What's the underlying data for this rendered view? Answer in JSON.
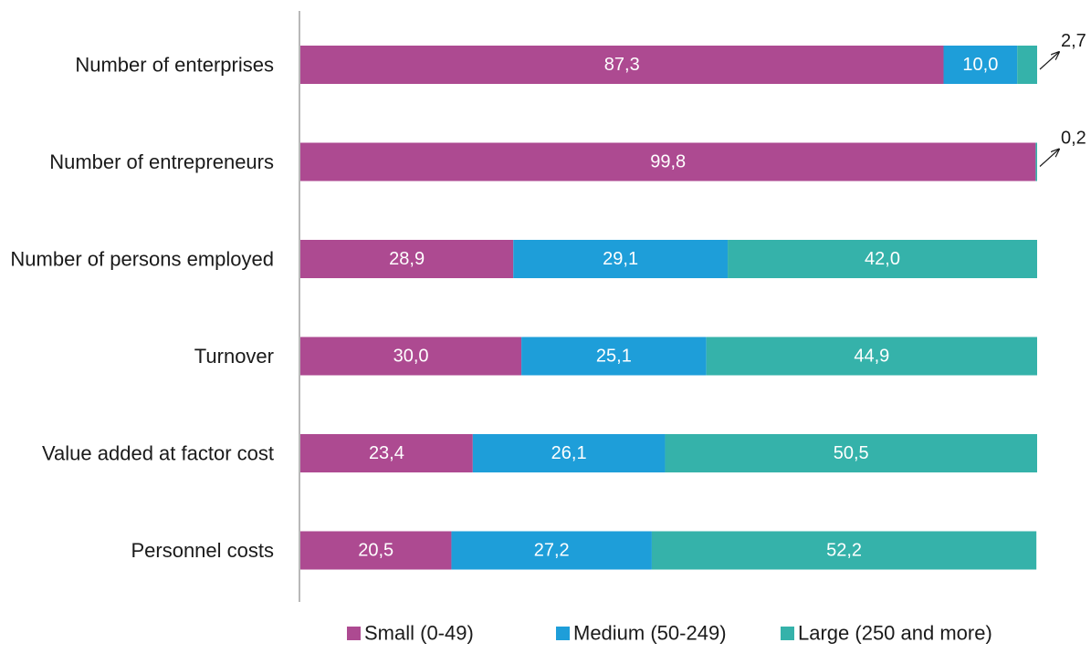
{
  "chart_data": {
    "type": "bar",
    "orientation": "horizontal",
    "stacked": true,
    "percent_stacked": true,
    "xlim": [
      0,
      100
    ],
    "categories": [
      "Number of enterprises",
      "Number of entrepreneurs",
      "Number of persons employed",
      "Turnover",
      "Value added at factor cost",
      "Personnel costs"
    ],
    "series": [
      {
        "name": "Small (0-49)",
        "color": "#ad4a91",
        "values": [
          87.3,
          99.8,
          28.9,
          30.0,
          23.4,
          20.5
        ],
        "labels": [
          "87,3",
          "99,8",
          "28,9",
          "30,0",
          "23,4",
          "20,5"
        ]
      },
      {
        "name": "Medium (50-249)",
        "color": "#1e9ed9",
        "values": [
          10.0,
          0.0,
          29.1,
          25.1,
          26.1,
          27.2
        ],
        "labels": [
          "10,0",
          "",
          "29,1",
          "25,1",
          "26,1",
          "27,2"
        ]
      },
      {
        "name": "Large (250 and more)",
        "color": "#35b2aa",
        "values": [
          2.7,
          0.2,
          42.0,
          44.9,
          50.5,
          52.2
        ],
        "labels": [
          "",
          "",
          "42,0",
          "44,9",
          "50,5",
          "52,2"
        ]
      }
    ],
    "callouts": [
      {
        "category_index": 0,
        "text": "2,7"
      },
      {
        "category_index": 1,
        "text": "0,2"
      }
    ],
    "legend_position": "bottom",
    "grid": false
  }
}
